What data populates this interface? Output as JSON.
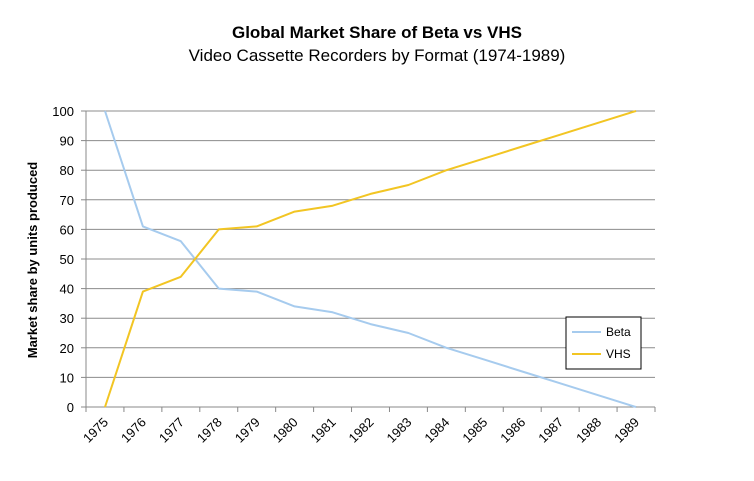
{
  "chart_data": {
    "type": "line",
    "title": "Global Market Share of Beta vs VHS",
    "subtitle": "Video Cassette Recorders by Format (1974-1989)",
    "xlabel": "",
    "ylabel": "Market share by units produced",
    "x": [
      "1975",
      "1976",
      "1977",
      "1978",
      "1979",
      "1980",
      "1981",
      "1982",
      "1983",
      "1984",
      "1985",
      "1986",
      "1987",
      "1988",
      "1989"
    ],
    "ylim": [
      0,
      100
    ],
    "yticks": [
      "0",
      "10",
      "20",
      "30",
      "40",
      "50",
      "60",
      "70",
      "80",
      "90",
      "100"
    ],
    "grid": true,
    "legend_position": "bottom-right",
    "series": [
      {
        "name": "Beta",
        "color": "#a6cbee",
        "values": [
          100,
          61,
          56,
          40,
          39,
          34,
          32,
          28,
          25,
          20,
          16,
          12,
          8,
          4,
          0
        ]
      },
      {
        "name": "VHS",
        "color": "#f2c523",
        "values": [
          0,
          39,
          44,
          60,
          61,
          66,
          68,
          72,
          75,
          80,
          84,
          88,
          92,
          96,
          100
        ]
      }
    ]
  }
}
